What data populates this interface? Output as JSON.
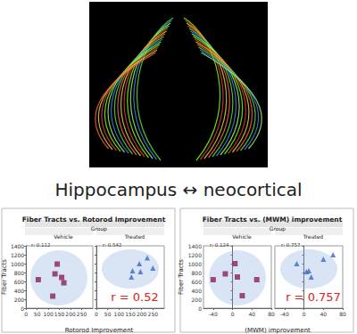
{
  "caption": "Hippocampus ↔ neocortical",
  "chart_data": [
    {
      "type": "scatter",
      "title": "Fiber Tracts vs. Rotorod Improvement",
      "group_label": "Group",
      "x_label": "Rotorod Improvement",
      "y_label": "Fiber Tracts",
      "annotation": "r = 0.52",
      "xlim": [
        0,
        300
      ],
      "xticks": [
        0,
        50,
        100,
        150,
        200,
        250
      ],
      "ylim": [
        0,
        1400
      ],
      "yticks": [
        0,
        200,
        400,
        600,
        800,
        1000,
        1200,
        1400
      ],
      "grid": false,
      "series": [
        {
          "name": "Vehicle",
          "color": "#8b2252",
          "marker": "square",
          "annotation": "r: 0.112",
          "x": [
            55,
            130,
            140,
            160,
            170,
            120
          ],
          "values": [
            640,
            770,
            990,
            690,
            570,
            270
          ]
        },
        {
          "name": "Treated",
          "color": "#3f67c9",
          "marker": "triangle",
          "annotation": "r: 0.542",
          "x": [
            155,
            160,
            190,
            195,
            225,
            250
          ],
          "values": [
            700,
            840,
            1000,
            820,
            1130,
            900
          ]
        }
      ]
    },
    {
      "type": "scatter",
      "title": "Fiber Tracts vs. (MWM) improvement",
      "group_label": "Group",
      "x_label": "(MWM) improvement",
      "y_label": "Fiber Tracts",
      "annotation": "r = 0.757",
      "xlim": [
        -60,
        80
      ],
      "xticks": [
        -40,
        0,
        40,
        80
      ],
      "ylim": [
        0,
        1400
      ],
      "yticks": [
        0,
        200,
        400,
        600,
        800,
        1000,
        1200,
        1400
      ],
      "grid": false,
      "series": [
        {
          "name": "Vehicle",
          "color": "#8b2252",
          "marker": "square",
          "annotation": "r: 0.124",
          "x": [
            -40,
            -15,
            5,
            10,
            20,
            50
          ],
          "values": [
            640,
            770,
            1000,
            700,
            280,
            640
          ]
        },
        {
          "name": "Treated",
          "color": "#3f67c9",
          "marker": "triangle",
          "annotation": "r: 0.757",
          "x": [
            -15,
            5,
            10,
            15,
            40,
            60
          ],
          "values": [
            1000,
            820,
            840,
            700,
            1100,
            1200
          ]
        }
      ]
    }
  ]
}
